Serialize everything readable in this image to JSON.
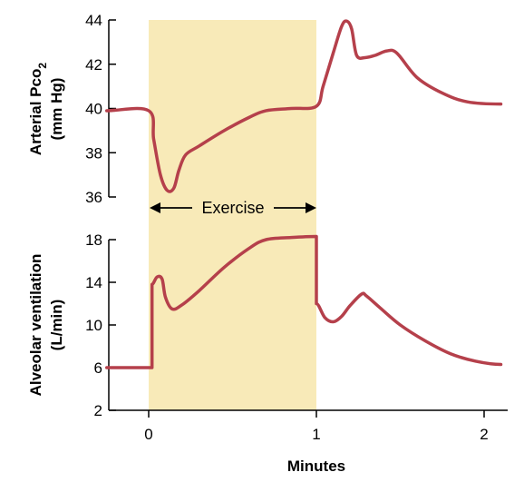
{
  "chart_data": [
    {
      "type": "line",
      "panel": "top",
      "ylabel": "Arterial Pco2",
      "ylabel_line1": "Arterial Pco",
      "ylabel_sub": "2",
      "yunits": "(mm Hg)",
      "ylim": [
        36,
        44
      ],
      "yticks": [
        "36",
        "38",
        "40",
        "42",
        "44"
      ],
      "xlim": [
        -0.25,
        2.1
      ],
      "grid": false,
      "line_color": "#b5404b",
      "series": [
        {
          "x": [
            -0.25,
            0.0,
            0.03,
            0.07,
            0.11,
            0.15,
            0.18,
            0.22,
            0.3,
            0.45,
            0.6,
            0.7,
            0.85,
            1.0,
            1.04,
            1.1,
            1.15,
            1.18,
            1.21,
            1.24,
            1.29,
            1.35,
            1.42,
            1.48,
            1.6,
            1.75,
            1.9,
            2.1
          ],
          "y": [
            39.9,
            39.9,
            38.6,
            37.0,
            36.3,
            36.4,
            37.2,
            37.9,
            38.3,
            39.0,
            39.6,
            39.9,
            40.0,
            40.1,
            41.0,
            42.5,
            43.7,
            43.95,
            43.6,
            42.4,
            42.3,
            42.4,
            42.6,
            42.5,
            41.4,
            40.7,
            40.3,
            40.2
          ]
        }
      ]
    },
    {
      "type": "line",
      "panel": "bottom",
      "ylabel": "Alveolar ventilation",
      "yunits": "(L/min)",
      "xlabel": "Minutes",
      "ylim": [
        2,
        18
      ],
      "yticks": [
        "2",
        "6",
        "10",
        "14",
        "18"
      ],
      "xticks": [
        "0",
        "1",
        "2"
      ],
      "xlim": [
        -0.25,
        2.1
      ],
      "grid": false,
      "line_color": "#b5404b",
      "series": [
        {
          "x": [
            -0.25,
            0.02,
            0.02,
            0.05,
            0.08,
            0.1,
            0.14,
            0.2,
            0.3,
            0.45,
            0.6,
            0.7,
            0.85,
            1.0,
            1.0,
            1.05,
            1.1,
            1.15,
            1.2,
            1.27,
            1.3,
            1.38,
            1.5,
            1.65,
            1.8,
            1.95,
            2.1
          ],
          "y": [
            6.0,
            6.0,
            13.8,
            14.5,
            14.3,
            12.6,
            11.5,
            11.9,
            13.2,
            15.4,
            17.2,
            18.0,
            18.2,
            18.3,
            12.0,
            10.7,
            10.3,
            10.8,
            11.8,
            12.9,
            12.7,
            11.6,
            10.0,
            8.5,
            7.3,
            6.6,
            6.3
          ]
        }
      ]
    }
  ],
  "shading": {
    "from_x": 0,
    "to_x": 1,
    "color": "#f8eab8"
  },
  "annotation": {
    "label": "Exercise"
  }
}
